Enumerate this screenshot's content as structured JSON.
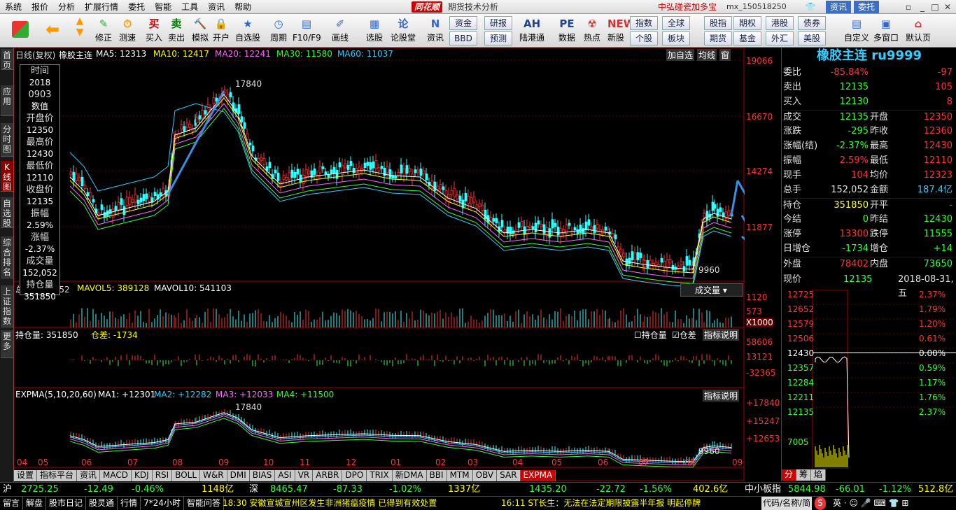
{
  "menu": [
    "系统",
    "报价",
    "分析",
    "扩展行情",
    "委托",
    "智能",
    "工具",
    "资讯",
    "帮助"
  ],
  "app": {
    "logo": "同花顺",
    "title": "期货技术分析",
    "account": "中弘碰瓷加多宝",
    "user": "mx_150518250",
    "zx": "资讯",
    "wt": "委托"
  },
  "toolbar": [
    "修正",
    "测速",
    "买入",
    "卖出",
    "模拟",
    "开户",
    "自选股",
    "周期",
    "F10/F9",
    "画线",
    "选股",
    "论股堂",
    "资讯",
    "陆港通",
    "数据",
    "热点",
    "新股",
    "自定义",
    "多窗口",
    "默认页"
  ],
  "toolbar_btns": [
    "资金",
    "研报",
    "BBD",
    "预测",
    "指数",
    "股指",
    "期权",
    "港股",
    "债券",
    "个股",
    "板块",
    "期货",
    "基金",
    "外汇",
    "美股"
  ],
  "side": [
    "首页",
    "应用",
    "分时图",
    "K线图",
    "自选股",
    "综合排名",
    "上证指数",
    "更多"
  ],
  "ma_line": {
    "name": "日线(复权)",
    "sym": "橡胶主连",
    "ma5": "MA5: 12313",
    "ma10": "MA10: 12417",
    "ma20": "MA20: 12241",
    "ma30": "MA30: 11580",
    "ma60": "MA60: 11037",
    "btn1": "加自选",
    "btn2": "均线",
    "btn3": "窗"
  },
  "scale_main": [
    "19066",
    "16670",
    "14274",
    "11877"
  ],
  "high_label": "17840",
  "low_label": "9960",
  "vol_line": {
    "name": "总手: 152052",
    "ma5": "MAVOL5: 389128",
    "ma10": "MAVOL10: 541103",
    "dd": "成交量"
  },
  "scale_vol": [
    "1120",
    "573",
    "X1000"
  ],
  "oi_line": {
    "name": "持仓量: 351850",
    "diff": "仓差: -1734",
    "chk1": "持仓量",
    "chk2": "仓差",
    "btn": "指标说明"
  },
  "scale_oi": [
    "58606",
    "13121",
    "-32365"
  ],
  "expma_line": {
    "name": "EXPMA(5,10,20,60)",
    "ma1": "MA1: +12301",
    "ma2": "MA2: +12282",
    "ma3": "MA3: +12033",
    "ma4": "MA4: +11500",
    "btn": "指标说明"
  },
  "scale_expma": [
    "+17840",
    "+15247",
    "+12653"
  ],
  "expma_high": "17840",
  "expma_low": "9960",
  "months": [
    "04",
    "05",
    "06",
    "07",
    "08",
    "09",
    "10",
    "11",
    "12",
    "01",
    "02",
    "03",
    "04",
    "05",
    "06",
    "07",
    "08",
    "09"
  ],
  "info": [
    [
      "时间",
      "2018"
    ],
    [
      "0903",
      "数值"
    ],
    [
      "开盘价",
      "12350"
    ],
    [
      "最高价",
      "12430"
    ],
    [
      "最低价",
      "12110"
    ],
    [
      "收盘价",
      "12135"
    ],
    [
      "振幅",
      "2.59%"
    ],
    [
      "涨幅",
      "-2.37%"
    ],
    [
      "成交量",
      "152,052"
    ],
    [
      "持仓量",
      "351850"
    ]
  ],
  "rp": {
    "title": "橡胶主连 ru9999",
    "rows": [
      [
        "委比",
        "-85.84%",
        "",
        "-97"
      ],
      [
        "卖出",
        "12135",
        "",
        "105"
      ],
      [
        "买入",
        "12130",
        "",
        "8"
      ],
      [
        "成交",
        "12135",
        "开盘",
        "12350"
      ],
      [
        "涨跌",
        "-295",
        "昨收",
        "12360"
      ],
      [
        "涨幅(结)",
        "-2.37%",
        "最高",
        "12430"
      ],
      [
        "振幅",
        "2.59%",
        "最低",
        "12110"
      ],
      [
        "现手",
        "104",
        "均价",
        "12323"
      ],
      [
        "总手",
        "152,052",
        "金额",
        "187.4亿"
      ],
      [
        "持仓",
        "351850",
        "开平",
        "-"
      ],
      [
        "今结",
        "0",
        "昨结",
        "12430"
      ],
      [
        "涨停",
        "13300",
        "跌停",
        "11555"
      ],
      [
        "日增仓",
        "-1734",
        "增仓",
        "+14"
      ],
      [
        "外盘",
        "78402",
        "内盘",
        "73650"
      ]
    ],
    "now_label": "现价",
    "now": "12135",
    "date": "2018-08-31,五",
    "mini_l": [
      "12725",
      "12652",
      "12579",
      "12506",
      "12430",
      "12357",
      "12284",
      "12211",
      "12135",
      "7005"
    ],
    "mini_r": [
      "2.37%",
      "1.79%",
      "1.20%",
      "0.61%",
      "0.00%",
      "0.59%",
      "1.17%",
      "1.76%",
      "2.37%"
    ],
    "tabs": [
      "分",
      "筹",
      "焰"
    ]
  },
  "bottabs": [
    "设置",
    "指标平台",
    "资讯",
    "MACD",
    "KDJ",
    "RSI",
    "BOLL",
    "W&R",
    "DMI",
    "BIAS",
    "ASI",
    "VR",
    "ARBR",
    "DPO",
    "TRIX",
    "新DMA",
    "BBI",
    "MTM",
    "OBV",
    "SAR",
    "EXPMA"
  ],
  "ticker": [
    [
      "沪",
      "2725.25",
      "-12.49",
      "-0.46%",
      "1148亿"
    ],
    [
      "深",
      "8465.47",
      "-87.33",
      "-1.02%",
      "1337亿"
    ],
    [
      "",
      "1435.20",
      "-22.72",
      "-1.56%",
      "402.6亿"
    ],
    [
      "中小板指",
      "5844.98",
      "-66.01",
      "-1.12%",
      "512.8亿"
    ]
  ],
  "news": {
    "links": [
      "留言",
      "解盘",
      "股市日记",
      "股灵通",
      "行情",
      "7*24小时",
      "智能问答"
    ],
    "n1": "18:30 安徽宣城宣州区发生非洲猪瘟疫情 已得到有效处置",
    "n2": "16:11 ST长生：无法在法定期限披露半年报 明起停牌",
    "search": "代码/名称/简"
  }
}
